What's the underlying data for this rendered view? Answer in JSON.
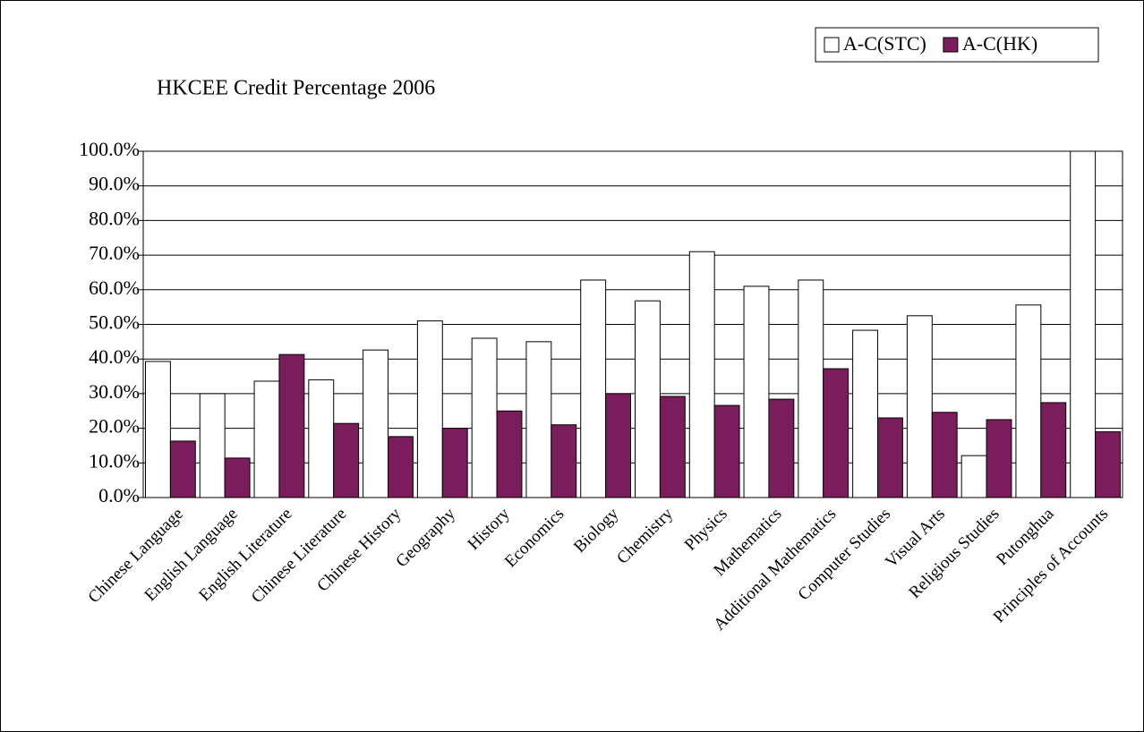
{
  "chart_data": {
    "type": "bar",
    "title": "HKCEE Credit Percentage 2006",
    "categories": [
      "Chinese Language",
      "English Language",
      "English Literature",
      "Chinese Literature",
      "Chinese History",
      "Geography",
      "History",
      "Economics",
      "Biology",
      "Chemistry",
      "Physics",
      "Mathematics",
      "Additional Mathematics",
      "Computer Studies",
      "Visual Arts",
      "Religious Studies",
      "Putonghua",
      "Principles of Accounts"
    ],
    "series": [
      {
        "name": "A-C(STC)",
        "color": "#ffffff",
        "values": [
          39.3,
          30,
          33.6,
          34,
          42.6,
          51,
          46,
          45,
          62.8,
          56.8,
          71,
          61,
          62.8,
          48.3,
          52.5,
          12.1,
          55.6,
          100
        ]
      },
      {
        "name": "A-C(HK)",
        "color": "#7b1c5c",
        "values": [
          16.3,
          11.4,
          41.3,
          21.4,
          17.6,
          20,
          25,
          21,
          30,
          29.2,
          26.6,
          28.4,
          37.2,
          23,
          24.6,
          22.5,
          27.4,
          19
        ]
      }
    ],
    "ylim": [
      0,
      100
    ],
    "yticks": [
      {
        "value": 0,
        "label": "0.0%"
      },
      {
        "value": 10,
        "label": "10.0%"
      },
      {
        "value": 20,
        "label": "20.0%"
      },
      {
        "value": 30,
        "label": "30.0%"
      },
      {
        "value": 40,
        "label": "40.0%"
      },
      {
        "value": 50,
        "label": "50.0%"
      },
      {
        "value": 60,
        "label": "60.0%"
      },
      {
        "value": 70,
        "label": "70.0%"
      },
      {
        "value": 80,
        "label": "80.0%"
      },
      {
        "value": 90,
        "label": "90.0%"
      },
      {
        "value": 100,
        "label": "100.0%"
      }
    ],
    "grid": true,
    "legend": "top-right"
  }
}
